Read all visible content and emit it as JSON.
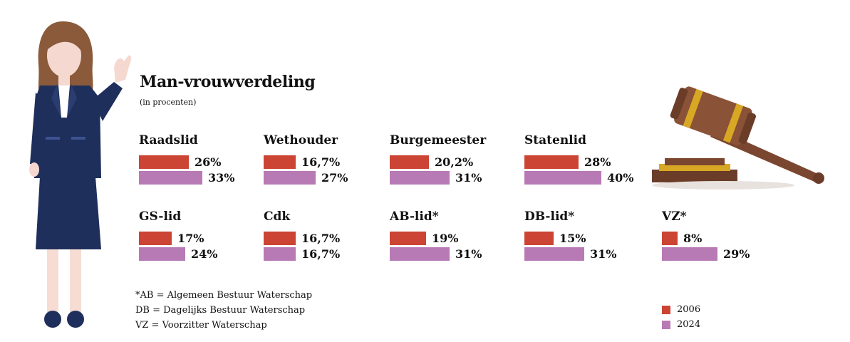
{
  "title": "Man-vrouwverdeling",
  "subtitle": "(in procenten)",
  "colors": {
    "2006": "#cc4433",
    "2024": "#b87ab5"
  },
  "chart_data": {
    "type": "bar",
    "title": "Man-vrouwverdeling",
    "subtitle": "(in procenten)",
    "series_names": [
      "2006",
      "2024"
    ],
    "groups": [
      {
        "name": "Raadslid",
        "values": [
          26,
          33
        ],
        "labels": [
          "26%",
          "33%"
        ]
      },
      {
        "name": "Wethouder",
        "values": [
          16.7,
          27
        ],
        "labels": [
          "16,7%",
          "27%"
        ]
      },
      {
        "name": "Burgemeester",
        "values": [
          20.2,
          31
        ],
        "labels": [
          "20,2%",
          "31%"
        ]
      },
      {
        "name": "Statenlid",
        "values": [
          28,
          40
        ],
        "labels": [
          "28%",
          "40%"
        ]
      },
      {
        "name": "GS-lid",
        "values": [
          17,
          24
        ],
        "labels": [
          "17%",
          "24%"
        ]
      },
      {
        "name": "Cdk",
        "values": [
          16.7,
          16.7
        ],
        "labels": [
          "16,7%",
          "16,7%"
        ]
      },
      {
        "name": "AB-lid*",
        "values": [
          19,
          31
        ],
        "labels": [
          "19%",
          "31%"
        ]
      },
      {
        "name": "DB-lid*",
        "values": [
          15,
          31
        ],
        "labels": [
          "15%",
          "31%"
        ]
      },
      {
        "name": "VZ*",
        "values": [
          8,
          29
        ],
        "labels": [
          "8%",
          "29%"
        ]
      }
    ]
  },
  "footnotes": [
    "*AB = Algemeen Bestuur Waterschap",
    " DB = Dagelijks Bestuur Waterschap",
    " VZ = Voorzitter Waterschap"
  ],
  "legend": [
    {
      "label": "2006",
      "color": "#cc4433"
    },
    {
      "label": "2024",
      "color": "#b87ab5"
    }
  ]
}
